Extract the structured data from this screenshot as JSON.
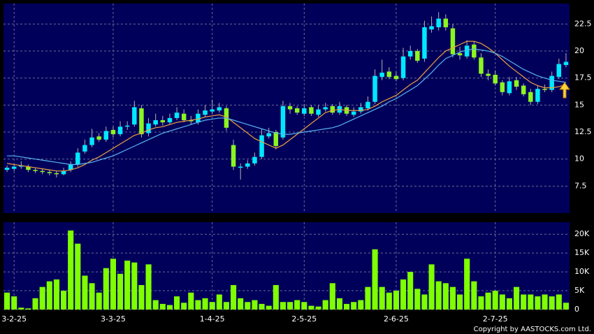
{
  "chart_data": [
    {
      "type": "candlestick",
      "up_color": "#00e8ff",
      "down_color": "#8cf520",
      "wick_color": "#b0b0b0",
      "open": [
        9.0,
        9.1,
        9.3,
        9.3,
        9.0,
        8.9,
        8.8,
        8.7,
        8.6,
        9.0,
        9.5,
        10.7,
        11.3,
        12.1,
        11.8,
        12.7,
        12.3,
        13.0,
        13.2,
        14.7,
        12.4,
        13.2,
        13.6,
        13.4,
        13.8,
        14.2,
        13.6,
        13.4,
        14.1,
        14.4,
        14.5,
        14.7,
        11.3,
        9.2,
        9.3,
        9.6,
        10.2,
        12.1,
        12.5,
        12.0,
        14.9,
        14.7,
        14.2,
        14.8,
        14.1,
        14.6,
        14.9,
        14.3,
        14.8,
        14.1,
        14.4,
        14.7,
        15.3,
        17.6,
        18.1,
        17.7,
        17.5,
        19.5,
        20.0,
        19.3,
        22.0,
        22.2,
        23.0,
        22.1,
        19.8,
        19.5,
        20.6,
        19.4,
        17.9,
        17.8,
        17.1,
        16.1,
        17.3,
        16.8,
        16.2,
        15.3,
        16.5,
        16.4,
        17.6,
        18.7
      ],
      "high": [
        9.4,
        9.5,
        9.8,
        9.5,
        9.2,
        9.1,
        9.0,
        8.9,
        9.2,
        9.8,
        11.0,
        11.8,
        12.8,
        12.4,
        13.0,
        13.0,
        13.5,
        13.5,
        15.4,
        15.0,
        13.8,
        14.2,
        14.0,
        14.2,
        14.8,
        14.6,
        14.0,
        14.6,
        15.0,
        15.5,
        15.2,
        14.9,
        11.8,
        9.6,
        9.9,
        10.6,
        12.8,
        12.9,
        12.7,
        15.4,
        15.2,
        14.9,
        15.1,
        15.0,
        15.0,
        15.2,
        15.1,
        15.3,
        15.0,
        14.8,
        15.2,
        15.8,
        18.3,
        19.2,
        18.5,
        18.1,
        20.3,
        20.5,
        20.2,
        22.8,
        23.2,
        23.6,
        23.4,
        22.5,
        20.4,
        21.0,
        20.9,
        19.8,
        18.3,
        18.2,
        17.3,
        17.6,
        17.6,
        17.0,
        16.5,
        16.8,
        16.9,
        18.1,
        19.3,
        19.8
      ],
      "low": [
        8.8,
        8.9,
        9.1,
        8.8,
        8.7,
        8.6,
        8.5,
        8.3,
        8.5,
        8.8,
        9.3,
        10.5,
        11.1,
        11.6,
        11.6,
        12.0,
        12.1,
        12.7,
        13.0,
        12.0,
        12.1,
        13.0,
        13.1,
        13.2,
        13.6,
        13.4,
        13.2,
        13.2,
        13.9,
        14.2,
        14.3,
        12.6,
        9.0,
        8.1,
        9.1,
        9.4,
        10.0,
        11.9,
        10.9,
        11.8,
        14.2,
        14.1,
        14.0,
        14.0,
        13.9,
        14.4,
        14.1,
        14.1,
        14.0,
        13.9,
        14.2,
        14.5,
        15.1,
        17.3,
        17.4,
        17.2,
        17.3,
        19.2,
        18.9,
        19.0,
        21.7,
        21.9,
        21.9,
        19.4,
        19.2,
        19.3,
        19.2,
        17.6,
        17.3,
        16.8,
        15.9,
        15.9,
        16.4,
        15.8,
        15.0,
        15.1,
        16.2,
        16.2,
        17.4,
        18.5
      ],
      "close": [
        9.2,
        9.3,
        9.4,
        9.0,
        8.9,
        8.8,
        8.7,
        8.6,
        8.9,
        9.5,
        10.6,
        11.3,
        12.0,
        11.8,
        12.6,
        12.3,
        13.0,
        13.1,
        14.8,
        12.3,
        13.3,
        13.6,
        13.4,
        13.8,
        14.3,
        13.6,
        13.5,
        14.2,
        14.5,
        14.6,
        14.8,
        12.9,
        9.3,
        9.3,
        9.6,
        10.2,
        12.2,
        12.4,
        11.2,
        14.9,
        14.6,
        14.3,
        14.7,
        14.2,
        14.6,
        14.8,
        14.3,
        14.9,
        14.2,
        14.4,
        14.8,
        15.3,
        17.7,
        18.0,
        17.6,
        17.4,
        19.5,
        20.0,
        19.1,
        22.2,
        22.3,
        23.0,
        22.2,
        19.7,
        19.6,
        20.5,
        19.4,
        17.9,
        17.7,
        17.0,
        16.2,
        17.2,
        16.7,
        16.0,
        15.3,
        16.5,
        16.4,
        17.7,
        18.8,
        19.0
      ],
      "series": [
        {
          "color": "#f0a040",
          "values": [
            9.6,
            9.5,
            9.4,
            9.3,
            9.2,
            9.1,
            9.0,
            8.9,
            8.9,
            9.0,
            9.2,
            9.5,
            9.9,
            10.2,
            10.6,
            11.0,
            11.4,
            11.8,
            12.2,
            12.4,
            12.7,
            12.9,
            13.0,
            13.2,
            13.4,
            13.5,
            13.6,
            13.7,
            13.9,
            14.0,
            14.1,
            13.9,
            13.4,
            12.9,
            12.4,
            11.9,
            11.6,
            11.3,
            11.0,
            11.3,
            11.8,
            12.3,
            12.8,
            13.3,
            13.8,
            14.3,
            14.5,
            14.6,
            14.5,
            14.5,
            14.5,
            14.6,
            14.9,
            15.3,
            15.6,
            15.9,
            16.4,
            16.9,
            17.3,
            18.0,
            18.7,
            19.4,
            20.0,
            20.3,
            20.6,
            20.9,
            20.9,
            20.7,
            20.3,
            19.8,
            19.2,
            18.6,
            18.1,
            17.6,
            17.1,
            16.8,
            16.6,
            16.6,
            16.7,
            16.9
          ]
        },
        {
          "color": "#5ab4f0",
          "values": [
            10.3,
            10.3,
            10.2,
            10.1,
            10.0,
            9.9,
            9.8,
            9.7,
            9.6,
            9.5,
            9.5,
            9.6,
            9.7,
            9.9,
            10.1,
            10.3,
            10.6,
            10.9,
            11.2,
            11.5,
            11.8,
            12.1,
            12.4,
            12.6,
            12.8,
            13.0,
            13.2,
            13.4,
            13.6,
            13.7,
            13.8,
            13.8,
            13.6,
            13.4,
            13.2,
            13.0,
            12.8,
            12.6,
            12.4,
            12.3,
            12.3,
            12.4,
            12.5,
            12.6,
            12.7,
            12.8,
            12.9,
            13.1,
            13.4,
            13.7,
            14.0,
            14.3,
            14.6,
            14.9,
            15.3,
            15.6,
            16.0,
            16.4,
            16.8,
            17.4,
            18.0,
            18.7,
            19.3,
            19.6,
            19.9,
            20.1,
            20.2,
            20.1,
            20.0,
            19.8,
            19.5,
            19.1,
            18.7,
            18.3,
            18.0,
            17.7,
            17.5,
            17.3,
            17.2,
            17.1
          ]
        }
      ],
      "ylim": [
        5,
        24.4
      ],
      "yticks": [
        7.5,
        10,
        12.5,
        15,
        17.5,
        20,
        22.5
      ],
      "grid": true
    },
    {
      "type": "bar",
      "color": "#7fff00",
      "categories": [
        null,
        "3-2-25",
        null,
        null,
        null,
        null,
        null,
        null,
        null,
        null,
        null,
        null,
        null,
        null,
        null,
        "3-3-25",
        null,
        null,
        null,
        null,
        null,
        null,
        null,
        null,
        null,
        null,
        null,
        null,
        null,
        "1-4-25",
        null,
        null,
        null,
        null,
        null,
        null,
        null,
        null,
        null,
        null,
        null,
        null,
        "2-5-25",
        null,
        null,
        null,
        null,
        null,
        null,
        null,
        null,
        null,
        null,
        null,
        null,
        "2-6-25",
        null,
        null,
        null,
        null,
        null,
        null,
        null,
        null,
        null,
        null,
        null,
        null,
        null,
        "2-7-25",
        null,
        null,
        null,
        null,
        null,
        null,
        null,
        null,
        null,
        null
      ],
      "values": [
        4500,
        3500,
        500,
        300,
        3000,
        6000,
        7500,
        8000,
        5000,
        21000,
        17500,
        9000,
        7000,
        4500,
        11000,
        13500,
        9500,
        13000,
        12500,
        6500,
        12000,
        2500,
        1500,
        1200,
        3500,
        1800,
        4500,
        2500,
        3000,
        2000,
        4000,
        2000,
        6500,
        3000,
        2000,
        2500,
        1500,
        1000,
        6500,
        2000,
        2000,
        2500,
        2000,
        1000,
        800,
        2500,
        7000,
        3000,
        1500,
        2000,
        2500,
        6000,
        16000,
        6000,
        4500,
        5000,
        8000,
        10000,
        5500,
        4000,
        12000,
        7500,
        7000,
        6000,
        4000,
        13500,
        7500,
        3500,
        4500,
        5000,
        4000,
        3000,
        6000,
        4000,
        4000,
        3500,
        4000,
        3500,
        4000,
        1800
      ],
      "ylim": [
        0,
        23200
      ],
      "yticks": [
        0,
        {
          "value": 5000,
          "label": "5K"
        },
        {
          "value": 10000,
          "label": "10K"
        },
        {
          "value": 15000,
          "label": "15K"
        },
        {
          "value": 20000,
          "label": "20K"
        }
      ],
      "grid": true
    }
  ],
  "footer": "Copyright by AASTOCKS.com Ltd."
}
